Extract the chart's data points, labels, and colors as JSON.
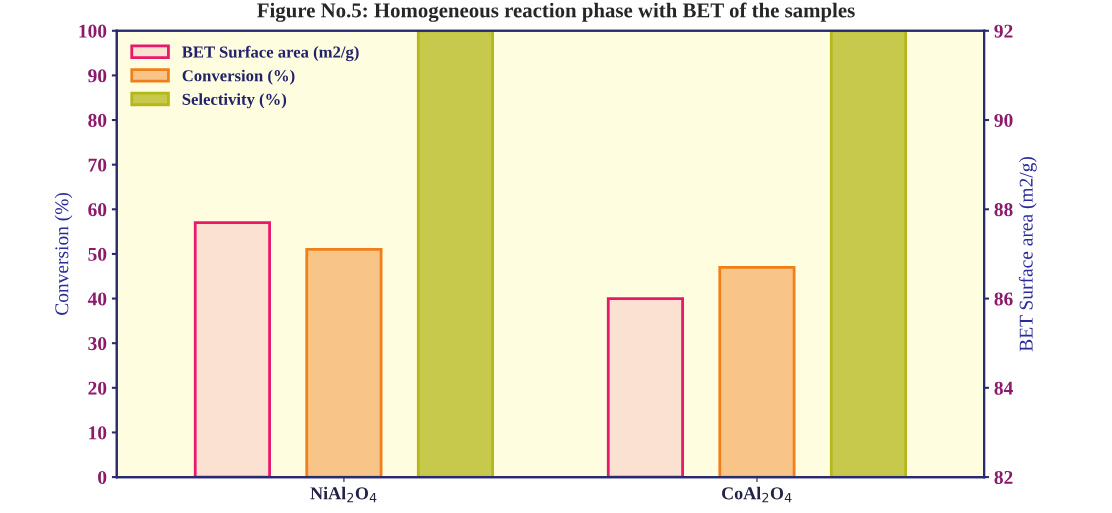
{
  "chart_data": {
    "type": "bar",
    "title": "Figure No.5: Homogeneous reaction phase with BET of the samples",
    "categories": [
      "NiAl$_{2}$O$_{4}$",
      "CoAl$_{2}$O$_{4}$"
    ],
    "ylabel": "Conversion (%)",
    "y2label": "BET Surface area (m2/g)",
    "series": [
      {
        "name": "BET Surface area (m2/g)",
        "color": "#e8186a",
        "values": [
          87.7,
          86.0
        ],
        "axis": "y2"
      },
      {
        "name": "Conversion (%)",
        "color": "#f07f1a",
        "values": [
          51,
          47
        ]
      },
      {
        "name": "Selectivity (%)",
        "color": "#b5b81a",
        "values": [
          100,
          100
        ]
      }
    ],
    "ylim": [
      0,
      100
    ],
    "yticks": [
      0,
      10,
      20,
      30,
      40,
      50,
      60,
      70,
      80,
      90,
      100
    ],
    "y2lim": [
      82,
      92
    ],
    "y2ticks": [
      82,
      84,
      86,
      88,
      90,
      92
    ],
    "legend": "top left",
    "grid": false
  }
}
